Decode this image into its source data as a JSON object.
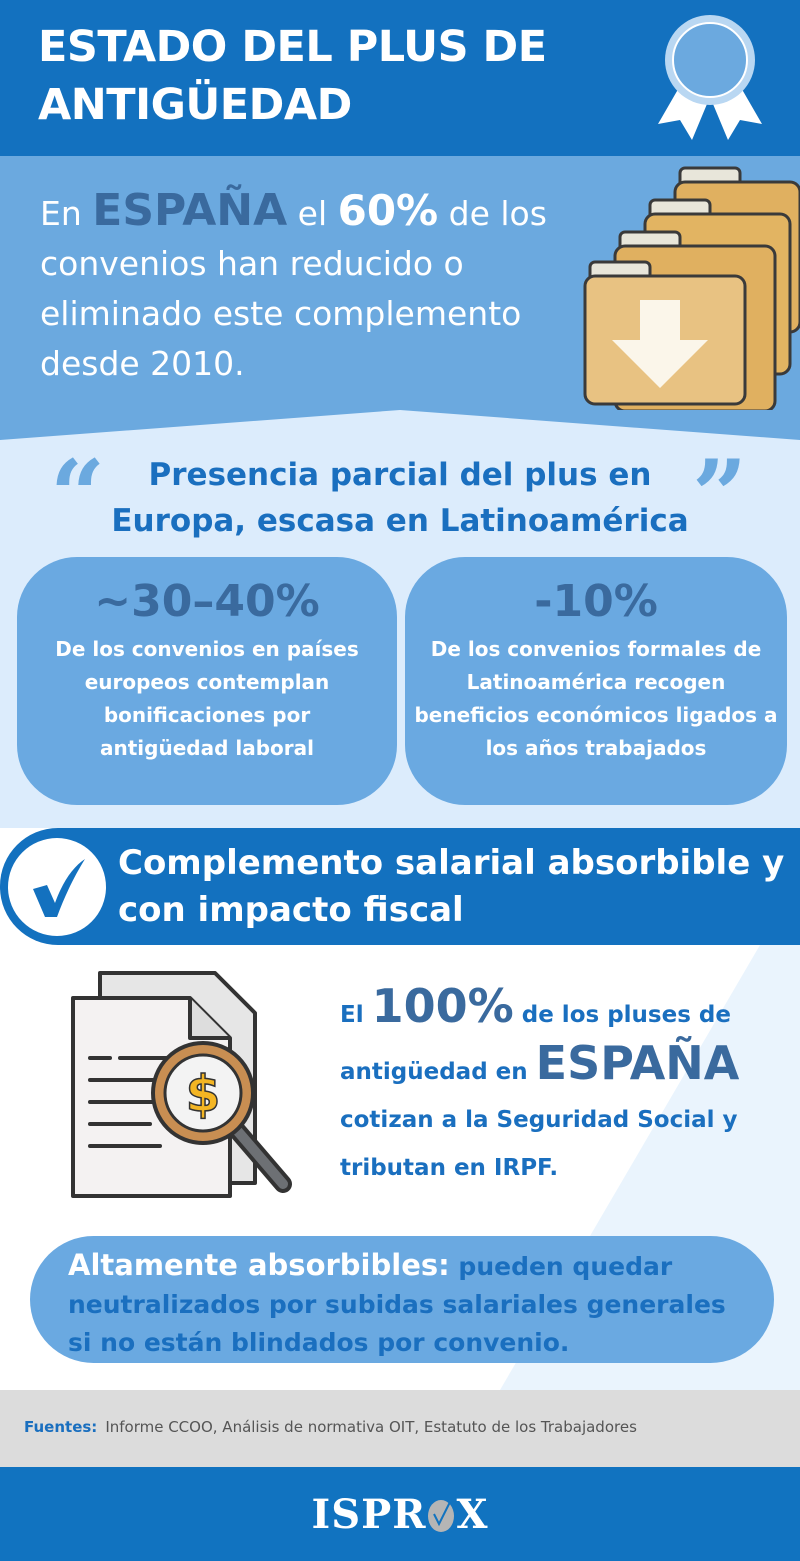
{
  "header": {
    "title_line1": "ESTADO DEL PLUS DE",
    "title_line2": "ANTIGÜEDAD",
    "badge_icon": "award-ribbon-icon"
  },
  "hero": {
    "t1": "En ",
    "country": "ESPAÑA",
    "t2": " el ",
    "percent": "60%",
    "t3": " de los convenios han reducido o eliminado este complemento desde 2010.",
    "icon": "folders-download-icon"
  },
  "presence": {
    "title": "Presencia parcial del plus en Europa, escasa en Latinoamérica",
    "cards": [
      {
        "value": "~30–40%",
        "text": "De los convenios en países europeos contemplan bonificaciones por antigüedad laboral"
      },
      {
        "value": "-10%",
        "text": "De los convenios formales de Latinoamérica recogen beneficios económicos ligados a los años trabajados"
      }
    ]
  },
  "fiscal": {
    "band_title": "Complemento salarial absorbible y con impacto fiscal",
    "t1": "El ",
    "percent": "100%",
    "t2": " de los pluses de antigüedad en ",
    "country": "ESPAÑA",
    "t3": " cotizan a la Seguridad Social y tributan en IRPF.",
    "icon": "document-magnifier-dollar-icon"
  },
  "absorb": {
    "lead": "Altamente absorbibles:",
    "rest": " pueden quedar neutralizados por subidas salariales generales si no están blindados por convenio."
  },
  "sources": {
    "label": "Fuentes:",
    "text": "Informe CCOO, Análisis de normativa OIT, Estatuto de los Trabajadores"
  },
  "footer": {
    "logo": "ISPROX"
  },
  "colors": {
    "primary": "#1371bf",
    "light_blue": "#6ba9df",
    "pale_blue": "#dcecfc",
    "dark_blue": "#3a6a9e"
  }
}
